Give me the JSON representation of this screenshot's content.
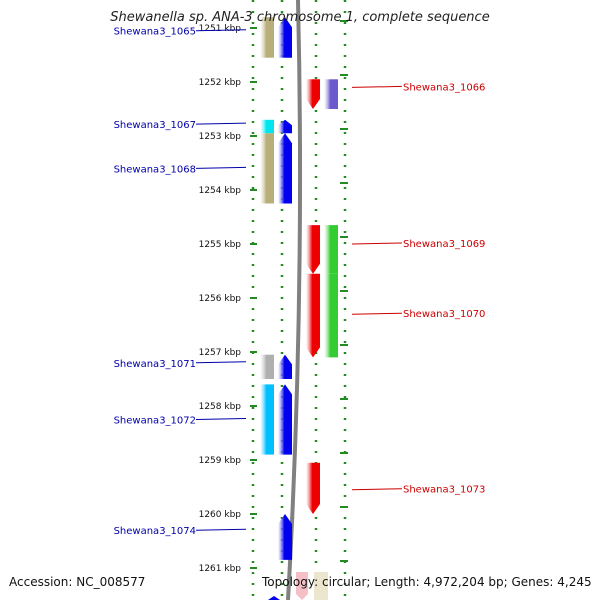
{
  "title": "Shewanella sp. ANA-3 chromosome 1, complete sequence",
  "accession": "Accession: NC_008577",
  "topology": "Topology: circular; Length: 4,972,204 bp; Genes: 4,245",
  "colors": {
    "left_label": "#0000aa",
    "right_label": "#cc0000",
    "dots": "#228b22",
    "backbone": "#808080",
    "tick_text": "#111111"
  },
  "ticks": [
    {
      "label": "1251 kbp",
      "kb": 1251
    },
    {
      "label": "1252 kbp",
      "kb": 1252
    },
    {
      "label": "1253 kbp",
      "kb": 1253
    },
    {
      "label": "1254 kbp",
      "kb": 1254
    },
    {
      "label": "1255 kbp",
      "kb": 1255
    },
    {
      "label": "1256 kbp",
      "kb": 1256
    },
    {
      "label": "1257 kbp",
      "kb": 1257
    },
    {
      "label": "1258 kbp",
      "kb": 1258
    },
    {
      "label": "1259 kbp",
      "kb": 1259
    },
    {
      "label": "1260 kbp",
      "kb": 1260
    },
    {
      "label": "1261 kbp",
      "kb": 1261
    }
  ],
  "genes": [
    {
      "name": "Shewana3_1065",
      "side": "left",
      "start_kb": 1250.8,
      "end_kb": 1251.55,
      "cog_color": "#b8ae7a",
      "strand_color": "#0000ee",
      "label_kb": 1251.05
    },
    {
      "name": "Shewana3_1066",
      "side": "right",
      "start_kb": 1251.95,
      "end_kb": 1252.5,
      "cog_color": "#6a5acd",
      "strand_color": "#ee0000",
      "label_kb": 1252.1
    },
    {
      "name": "Shewana3_1067",
      "side": "left",
      "start_kb": 1252.7,
      "end_kb": 1252.95,
      "cog_color": "#00e5ee",
      "strand_color": "#0000ee",
      "label_kb": 1252.78
    },
    {
      "name": "Shewana3_1068",
      "side": "left",
      "start_kb": 1252.95,
      "end_kb": 1254.25,
      "cog_color": "#b8ae7a",
      "strand_color": "#0000ee",
      "label_kb": 1253.6
    },
    {
      "name": "Shewana3_1069",
      "side": "right",
      "start_kb": 1254.65,
      "end_kb": 1255.55,
      "cog_color": "#33cc33",
      "strand_color": "#ee0000",
      "label_kb": 1255.0
    },
    {
      "name": "Shewana3_1070",
      "side": "right",
      "start_kb": 1255.55,
      "end_kb": 1257.1,
      "cog_color": "#33cc33",
      "strand_color": "#ee0000",
      "label_kb": 1256.3
    },
    {
      "name": "Shewana3_1071",
      "side": "left",
      "start_kb": 1257.05,
      "end_kb": 1257.5,
      "cog_color": "#b0b0b0",
      "strand_color": "#0000ee",
      "label_kb": 1257.2
    },
    {
      "name": "Shewana3_1072",
      "side": "left",
      "start_kb": 1257.6,
      "end_kb": 1258.9,
      "cog_color": "#00bfff",
      "strand_color": "#0000ee",
      "label_kb": 1258.25
    },
    {
      "name": "Shewana3_1073",
      "side": "right",
      "start_kb": 1259.05,
      "end_kb": 1260.0,
      "cog_color": "",
      "strand_color": "#ee0000",
      "label_kb": 1259.55
    },
    {
      "name": "Shewana3_1074",
      "side": "left",
      "start_kb": 1260.0,
      "end_kb": 1260.85,
      "cog_color": "",
      "strand_color": "#0000ee",
      "label_kb": 1260.3
    }
  ]
}
